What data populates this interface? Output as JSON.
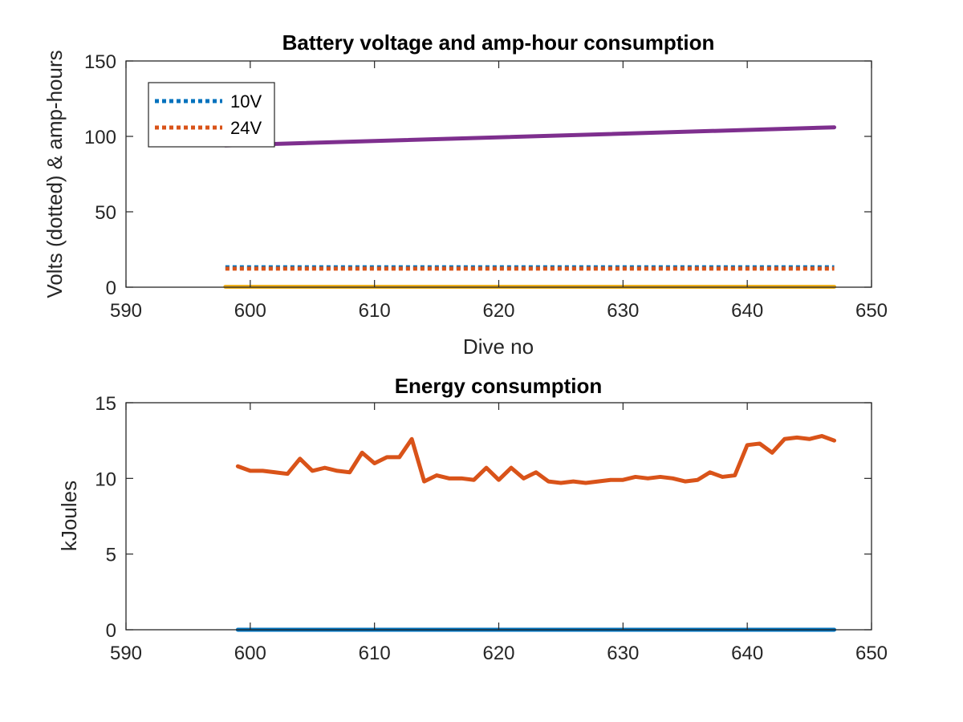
{
  "chart_data": [
    {
      "type": "line",
      "title": "Battery voltage and amp-hour consumption",
      "xlabel": "Dive no",
      "ylabel": "Volts (dotted) & amp-hours",
      "xlim": [
        590,
        650
      ],
      "ylim": [
        0,
        150
      ],
      "xticks": [
        590,
        600,
        610,
        620,
        630,
        640,
        650
      ],
      "yticks": [
        0,
        50,
        100,
        150
      ],
      "grid": false,
      "legend": {
        "placement": "top-left",
        "entries": [
          "10V",
          "24V"
        ]
      },
      "series": [
        {
          "name": "10V",
          "style": "dotted",
          "color": "#0072bd",
          "points": [
            [
              598,
              13.2
            ],
            [
              647,
              13.2
            ]
          ]
        },
        {
          "name": "24V",
          "style": "dotted",
          "color": "#d95319",
          "points": [
            [
              598,
              12.3
            ],
            [
              647,
              12.3
            ]
          ]
        },
        {
          "style": "solid",
          "color": "#7e2f8e",
          "points": [
            [
              598,
              94.0
            ],
            [
              647,
              106.0
            ]
          ]
        },
        {
          "style": "solid",
          "color": "#edb120",
          "points": [
            [
              598,
              0.3
            ],
            [
              647,
              0.3
            ]
          ]
        }
      ]
    },
    {
      "type": "line",
      "title": "Energy consumption",
      "xlabel": "",
      "ylabel": "kJoules",
      "xlim": [
        590,
        650
      ],
      "ylim": [
        0,
        15
      ],
      "xticks": [
        590,
        600,
        610,
        620,
        630,
        640,
        650
      ],
      "yticks": [
        0,
        5,
        10,
        15
      ],
      "grid": false,
      "series": [
        {
          "style": "solid",
          "color": "#d95319",
          "points": [
            [
              599,
              10.8
            ],
            [
              600,
              10.5
            ],
            [
              601,
              10.5
            ],
            [
              602,
              10.4
            ],
            [
              603,
              10.3
            ],
            [
              604,
              11.3
            ],
            [
              605,
              10.5
            ],
            [
              606,
              10.7
            ],
            [
              607,
              10.5
            ],
            [
              608,
              10.4
            ],
            [
              609,
              11.7
            ],
            [
              610,
              11.0
            ],
            [
              611,
              11.4
            ],
            [
              612,
              11.4
            ],
            [
              613,
              12.6
            ],
            [
              614,
              9.8
            ],
            [
              615,
              10.2
            ],
            [
              616,
              10.0
            ],
            [
              617,
              10.0
            ],
            [
              618,
              9.9
            ],
            [
              619,
              10.7
            ],
            [
              620,
              9.9
            ],
            [
              621,
              10.7
            ],
            [
              622,
              10.0
            ],
            [
              623,
              10.4
            ],
            [
              624,
              9.8
            ],
            [
              625,
              9.7
            ],
            [
              626,
              9.8
            ],
            [
              627,
              9.7
            ],
            [
              628,
              9.8
            ],
            [
              629,
              9.9
            ],
            [
              630,
              9.9
            ],
            [
              631,
              10.1
            ],
            [
              632,
              10.0
            ],
            [
              633,
              10.1
            ],
            [
              634,
              10.0
            ],
            [
              635,
              9.8
            ],
            [
              636,
              9.9
            ],
            [
              637,
              10.4
            ],
            [
              638,
              10.1
            ],
            [
              639,
              10.2
            ],
            [
              640,
              12.2
            ],
            [
              641,
              12.3
            ],
            [
              642,
              11.7
            ],
            [
              643,
              12.6
            ],
            [
              644,
              12.7
            ],
            [
              645,
              12.6
            ],
            [
              646,
              12.8
            ],
            [
              647,
              12.5
            ]
          ]
        },
        {
          "style": "solid",
          "color": "#0072bd",
          "points": [
            [
              599,
              0.0
            ],
            [
              647,
              0.0
            ]
          ]
        }
      ]
    }
  ]
}
